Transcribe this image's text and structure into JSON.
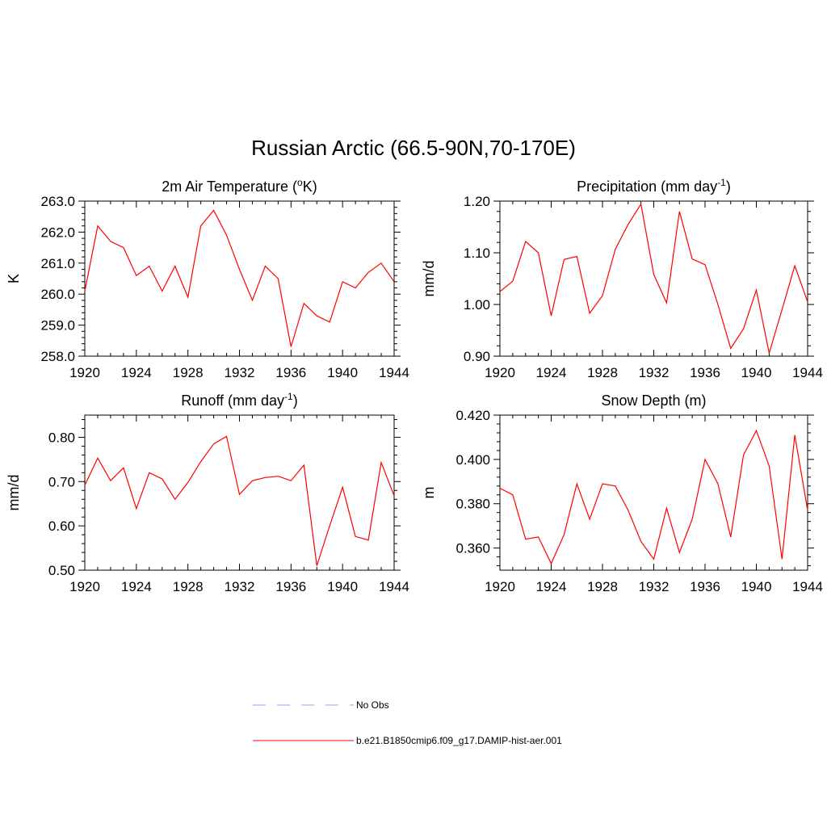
{
  "title": "Russian Arctic (66.5-90N,70-170E)",
  "colors": {
    "model_line": "#ff0000",
    "obs_line": "#9999ff",
    "axis": "#000000"
  },
  "legend": {
    "entries": [
      {
        "label": "No Obs",
        "style": "dashed",
        "color": "#9999ff"
      },
      {
        "label": "b.e21.B1850cmip6.f09_g17.DAMIP-hist-aer.001",
        "style": "solid",
        "color": "#ff0000"
      }
    ]
  },
  "chart_data": [
    {
      "type": "line",
      "title": "2m Air Temperature (",
      "title_sup": "o",
      "title_tail": "K)",
      "ylabel": "K",
      "xlim": [
        1920,
        1944
      ],
      "ylim": [
        258.0,
        263.0
      ],
      "xticks": [
        1920,
        1924,
        1928,
        1932,
        1936,
        1940,
        1944
      ],
      "yticks": [
        "258.0",
        "259.0",
        "260.0",
        "261.0",
        "262.0",
        "263.0"
      ],
      "series": [
        {
          "x": [
            1920,
            1921,
            1922,
            1923,
            1924,
            1925,
            1926,
            1927,
            1928,
            1929,
            1930,
            1931,
            1932,
            1933,
            1934,
            1935,
            1936,
            1937,
            1938,
            1939,
            1940,
            1941,
            1942,
            1943,
            1944
          ],
          "values": [
            260.1,
            262.2,
            261.7,
            261.5,
            260.6,
            260.9,
            260.1,
            260.9,
            259.9,
            262.2,
            262.7,
            261.9,
            260.8,
            259.8,
            260.9,
            260.5,
            258.3,
            259.7,
            259.3,
            259.1,
            260.4,
            260.2,
            260.7,
            261.0,
            260.4
          ]
        }
      ]
    },
    {
      "type": "line",
      "title": "Precipitation (mm day",
      "title_sup": "-1",
      "title_tail": ")",
      "ylabel": "mm/d",
      "xlim": [
        1920,
        1944
      ],
      "ylim": [
        0.9,
        1.2
      ],
      "xticks": [
        1920,
        1924,
        1928,
        1932,
        1936,
        1940,
        1944
      ],
      "yticks": [
        "0.90",
        "1.00",
        "1.10",
        "1.20"
      ],
      "series": [
        {
          "x": [
            1920,
            1921,
            1922,
            1923,
            1924,
            1925,
            1926,
            1927,
            1928,
            1929,
            1930,
            1931,
            1932,
            1933,
            1934,
            1935,
            1936,
            1937,
            1938,
            1939,
            1940,
            1941,
            1942,
            1943,
            1944
          ],
          "values": [
            1.025,
            1.045,
            1.122,
            1.1,
            0.978,
            1.087,
            1.093,
            0.983,
            1.017,
            1.107,
            1.155,
            1.194,
            1.058,
            1.003,
            1.18,
            1.088,
            1.077,
            1.0,
            0.915,
            0.953,
            1.028,
            0.906,
            0.99,
            1.075,
            1.005
          ]
        }
      ]
    },
    {
      "type": "line",
      "title": "Runoff (mm day",
      "title_sup": "-1",
      "title_tail": ")",
      "ylabel": "mm/d",
      "xlim": [
        1920,
        1944
      ],
      "ylim": [
        0.5,
        0.85
      ],
      "xticks": [
        1920,
        1924,
        1928,
        1932,
        1936,
        1940,
        1944
      ],
      "yticks": [
        "0.50",
        "0.60",
        "0.70",
        "0.80"
      ],
      "series": [
        {
          "x": [
            1920,
            1921,
            1922,
            1923,
            1924,
            1925,
            1926,
            1927,
            1928,
            1929,
            1930,
            1931,
            1932,
            1933,
            1934,
            1935,
            1936,
            1937,
            1938,
            1939,
            1940,
            1941,
            1942,
            1943,
            1944
          ],
          "values": [
            0.692,
            0.753,
            0.702,
            0.731,
            0.639,
            0.72,
            0.706,
            0.66,
            0.698,
            0.745,
            0.785,
            0.802,
            0.671,
            0.702,
            0.709,
            0.712,
            0.702,
            0.737,
            0.51,
            0.6,
            0.687,
            0.576,
            0.568,
            0.743,
            0.668
          ]
        }
      ]
    },
    {
      "type": "line",
      "title": "Snow Depth (m)",
      "title_sup": "",
      "title_tail": "",
      "ylabel": "m",
      "xlim": [
        1920,
        1944
      ],
      "ylim": [
        0.35,
        0.42
      ],
      "xticks": [
        1920,
        1924,
        1928,
        1932,
        1936,
        1940,
        1944
      ],
      "yticks": [
        "0.360",
        "0.380",
        "0.400",
        "0.420"
      ],
      "series": [
        {
          "x": [
            1920,
            1921,
            1922,
            1923,
            1924,
            1925,
            1926,
            1927,
            1928,
            1929,
            1930,
            1931,
            1932,
            1933,
            1934,
            1935,
            1936,
            1937,
            1938,
            1939,
            1940,
            1941,
            1942,
            1943,
            1944
          ],
          "values": [
            0.387,
            0.384,
            0.364,
            0.365,
            0.353,
            0.366,
            0.389,
            0.373,
            0.389,
            0.388,
            0.377,
            0.363,
            0.355,
            0.378,
            0.358,
            0.373,
            0.4,
            0.389,
            0.365,
            0.402,
            0.413,
            0.397,
            0.355,
            0.411,
            0.377
          ]
        }
      ]
    }
  ]
}
